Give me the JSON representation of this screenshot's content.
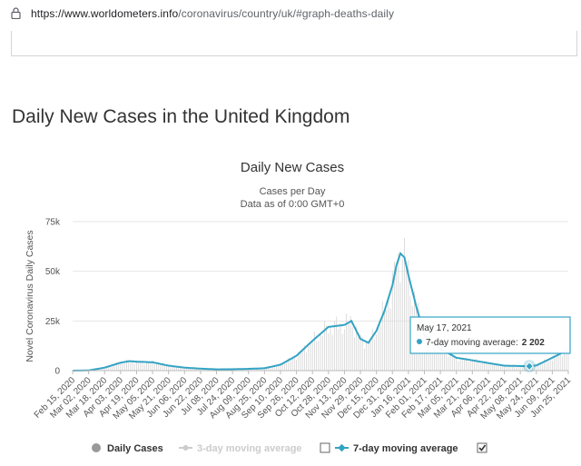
{
  "browser": {
    "url_prefix": "https://www.worldometers.info",
    "url_path": "/coronavirus/country/uk/#graph-deaths-daily"
  },
  "page": {
    "heading": "Daily New Cases in the United Kingdom"
  },
  "colors": {
    "series": "#33a3c4",
    "bars": "#d9d9d9",
    "grid": "#e6e6e6",
    "tooltip_border": "#33a3c4"
  },
  "tooltip": {
    "date": "May 17, 2021",
    "series_label": "7-day moving average:",
    "value": "2 202"
  },
  "legend": {
    "daily_cases": "Daily Cases",
    "three_day": "3-day moving average",
    "seven_day": "7-day moving average",
    "three_day_checked": false,
    "seven_day_checked": true
  },
  "chart_data": {
    "type": "line",
    "title": "Daily New Cases",
    "subtitle": "Cases per Day",
    "subtitle2": "Data as of 0:00 GMT+0",
    "ylabel": "Novel Coronavirus Daily Cases",
    "ylim": [
      0,
      75000
    ],
    "yticks": [
      0,
      25000,
      50000,
      75000
    ],
    "ytick_labels": [
      "0",
      "25k",
      "50k",
      "75k"
    ],
    "x_start": "2020-02-15",
    "x_end": "2021-06-25",
    "xtick_labels": [
      "Feb 15, 2020",
      "Mar 02, 2020",
      "Mar 18, 2020",
      "Apr 03, 2020",
      "Apr 19, 2020",
      "May 05, 2020",
      "May 21, 2020",
      "Jun 06, 2020",
      "Jun 22, 2020",
      "Jul 08, 2020",
      "Jul 24, 2020",
      "Aug 09, 2020",
      "Aug 25, 2020",
      "Sep 10, 2020",
      "Sep 26, 2020",
      "Oct 12, 2020",
      "Oct 28, 2020",
      "Nov 13, 2020",
      "Nov 29, 2020",
      "Dec 15, 2020",
      "Dec 31, 2020",
      "Jan 16, 2021",
      "Feb 01, 2021",
      "Feb 17, 2021",
      "Mar 05, 2021",
      "Mar 21, 2021",
      "Apr 06, 2021",
      "Apr 22, 2021",
      "May 08, 2021",
      "May 24, 2021",
      "Jun 09, 2021",
      "Jun 25, 2021"
    ],
    "grid": true,
    "legend_position": "bottom",
    "series": [
      {
        "name": "7-day moving average",
        "x": [
          "2020-02-15",
          "2020-03-02",
          "2020-03-18",
          "2020-04-03",
          "2020-04-12",
          "2020-04-19",
          "2020-05-05",
          "2020-05-21",
          "2020-06-06",
          "2020-06-22",
          "2020-07-08",
          "2020-07-24",
          "2020-08-09",
          "2020-08-25",
          "2020-09-10",
          "2020-09-26",
          "2020-10-12",
          "2020-10-20",
          "2020-10-28",
          "2020-11-05",
          "2020-11-13",
          "2020-11-20",
          "2020-11-29",
          "2020-12-07",
          "2020-12-15",
          "2020-12-23",
          "2020-12-31",
          "2021-01-04",
          "2021-01-08",
          "2021-01-12",
          "2021-01-16",
          "2021-01-24",
          "2021-02-01",
          "2021-02-17",
          "2021-03-05",
          "2021-03-21",
          "2021-04-06",
          "2021-04-22",
          "2021-05-08",
          "2021-05-17",
          "2021-05-24",
          "2021-06-09",
          "2021-06-25"
        ],
        "values": [
          0,
          100,
          1500,
          4000,
          4800,
          4500,
          4200,
          2500,
          1500,
          1000,
          650,
          700,
          900,
          1200,
          3000,
          7500,
          15000,
          18500,
          22000,
          22500,
          23000,
          25000,
          16000,
          14000,
          20000,
          30000,
          43000,
          53000,
          59000,
          57000,
          48000,
          32000,
          18000,
          11000,
          6500,
          5200,
          3800,
          2500,
          2300,
          2202,
          2600,
          6500,
          10500
        ]
      }
    ]
  }
}
